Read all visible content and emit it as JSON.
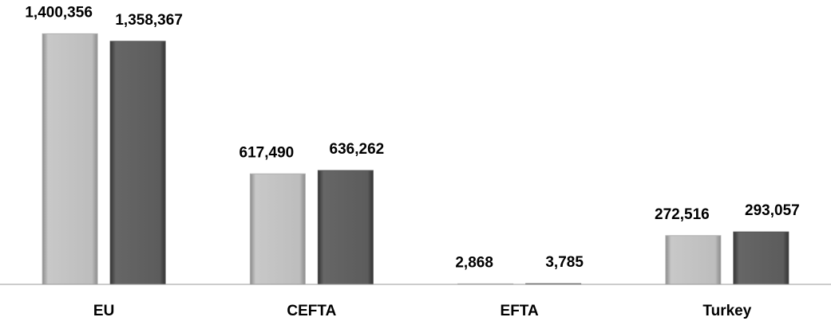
{
  "chart_data": {
    "type": "bar",
    "categories": [
      "EU",
      "CEFTA",
      "EFTA",
      "Turkey"
    ],
    "series": [
      {
        "color": "#b0b0b0",
        "values": [
          1400356,
          617490,
          2868,
          272516
        ],
        "value_labels": [
          "1,400,356",
          "617,490",
          "2,868",
          "272,516"
        ]
      },
      {
        "color": "#555555",
        "values": [
          1358367,
          636262,
          3785,
          293057
        ],
        "value_labels": [
          "1,358,367",
          "636,262",
          "3,785",
          "293,057"
        ]
      }
    ],
    "ylim": [
      0,
      1500000
    ]
  }
}
